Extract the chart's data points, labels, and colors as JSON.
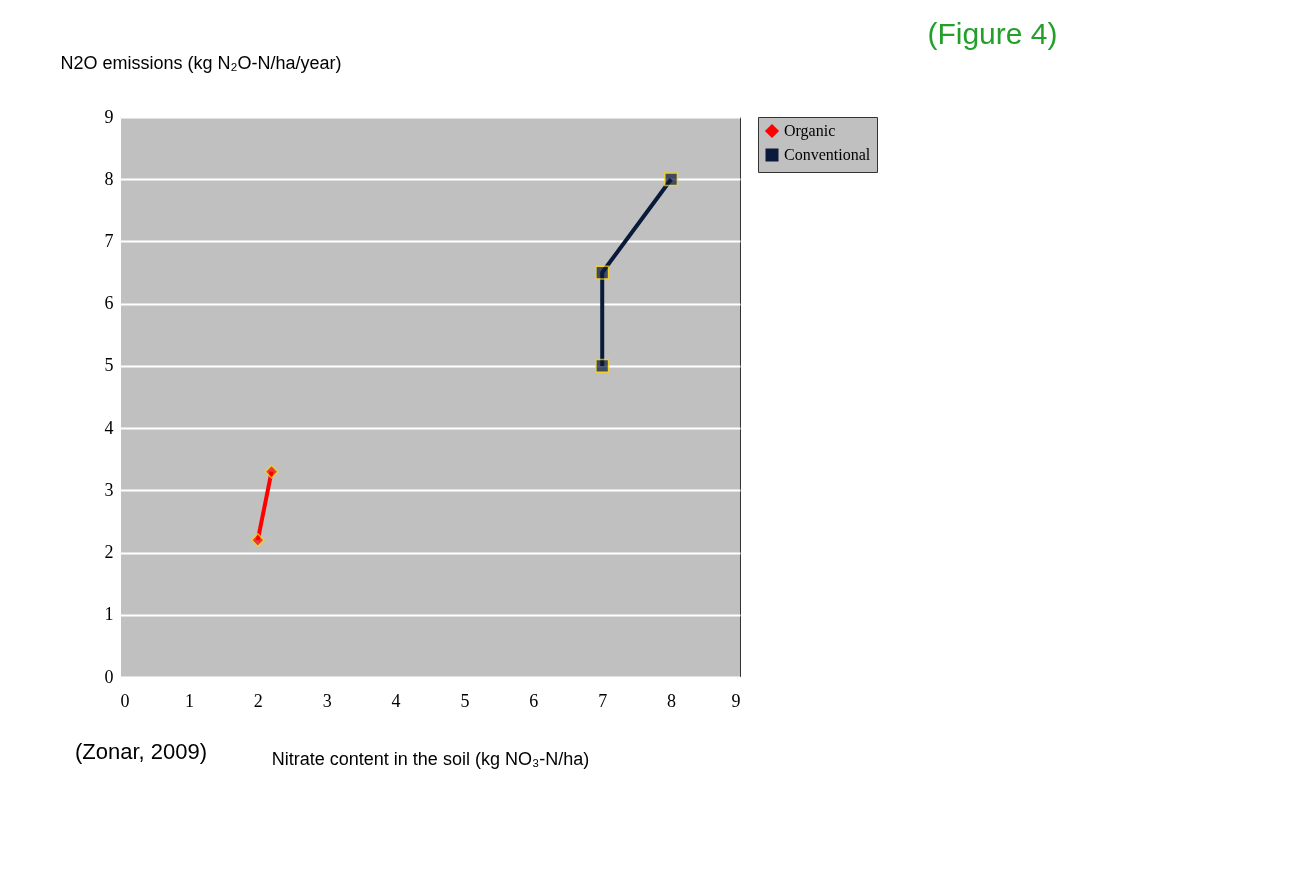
{
  "chart_data": {
    "type": "line",
    "title": "(Figure 4)",
    "ylabel": "N2O emissions (kg N₂O-N/ha/year)",
    "xlabel": "Nitrate content in the soil (kg NO₃-N/ha)",
    "annotations": [
      "(Zonar, 2009)"
    ],
    "series": [
      {
        "name": "Organic",
        "color": "#ff0000",
        "marker": "diamond",
        "x": [
          2,
          2.2
        ],
        "values": [
          2.2,
          3.3
        ]
      },
      {
        "name": "Conventional",
        "color": "#0a1a3a",
        "marker": "square",
        "x": [
          7,
          7,
          8
        ],
        "values": [
          5,
          6.5,
          8
        ]
      }
    ],
    "xlim": [
      0,
      9
    ],
    "ylim": [
      0,
      9
    ],
    "xticks": [
      0,
      1,
      2,
      3,
      4,
      5,
      6,
      7,
      8,
      9
    ],
    "yticks": [
      0,
      1,
      2,
      3,
      4,
      5,
      6,
      7,
      8,
      9
    ],
    "grid": "y",
    "legend": "right"
  }
}
